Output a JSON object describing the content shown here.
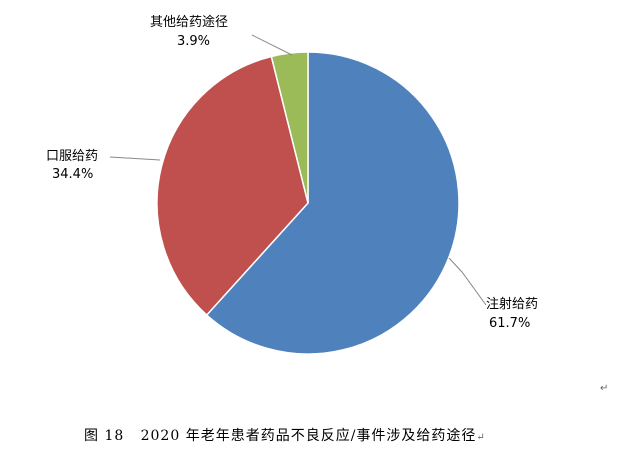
{
  "chart_data": {
    "type": "pie",
    "start_angle": "12 o'clock",
    "direction": "clockwise",
    "slices": [
      {
        "label": "注射给药",
        "value": 61.7,
        "display": "61.7%",
        "color": "#4F81BD"
      },
      {
        "label": "口服给药",
        "value": 34.4,
        "display": "34.4%",
        "color": "#C0504D"
      },
      {
        "label": "其他给药途径",
        "value": 3.9,
        "display": "3.9%",
        "color": "#9BBB59"
      }
    ],
    "legend": "none"
  },
  "caption": "图 18   2020 年老年患者药品不良反应/事件涉及给药途径",
  "marks": {
    "return": "↵"
  }
}
